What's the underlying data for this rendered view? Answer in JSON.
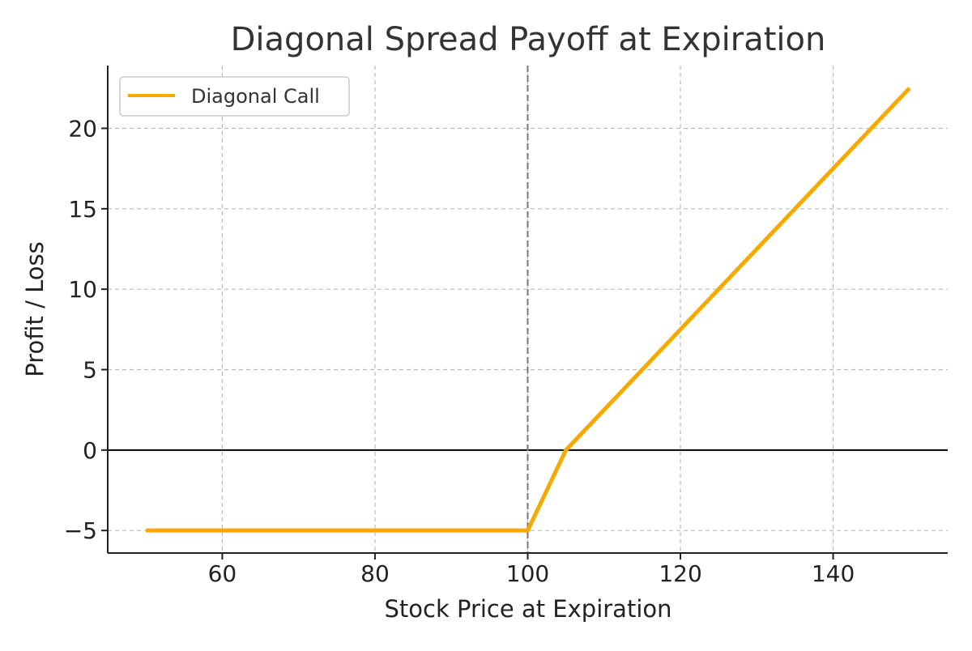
{
  "chart_data": {
    "type": "line",
    "title": "Diagonal Spread Payoff at Expiration",
    "xlabel": "Stock Price at Expiration",
    "ylabel": "Profit / Loss",
    "xlim": [
      45,
      155
    ],
    "ylim": [
      -6.4,
      23.9
    ],
    "xticks": [
      60,
      80,
      100,
      120,
      140
    ],
    "yticks": [
      -5,
      0,
      5,
      10,
      15,
      20
    ],
    "ytick_labels": [
      "−5",
      "0",
      "5",
      "10",
      "15",
      "20"
    ],
    "grid": true,
    "legend_position": "top-left",
    "zero_line": 0,
    "reference_vline": 100,
    "series": [
      {
        "name": "Diagonal Call",
        "color": "#f7a900",
        "x": [
          50,
          100,
          105,
          150
        ],
        "y": [
          -5,
          -5,
          0,
          22.5
        ]
      }
    ]
  }
}
